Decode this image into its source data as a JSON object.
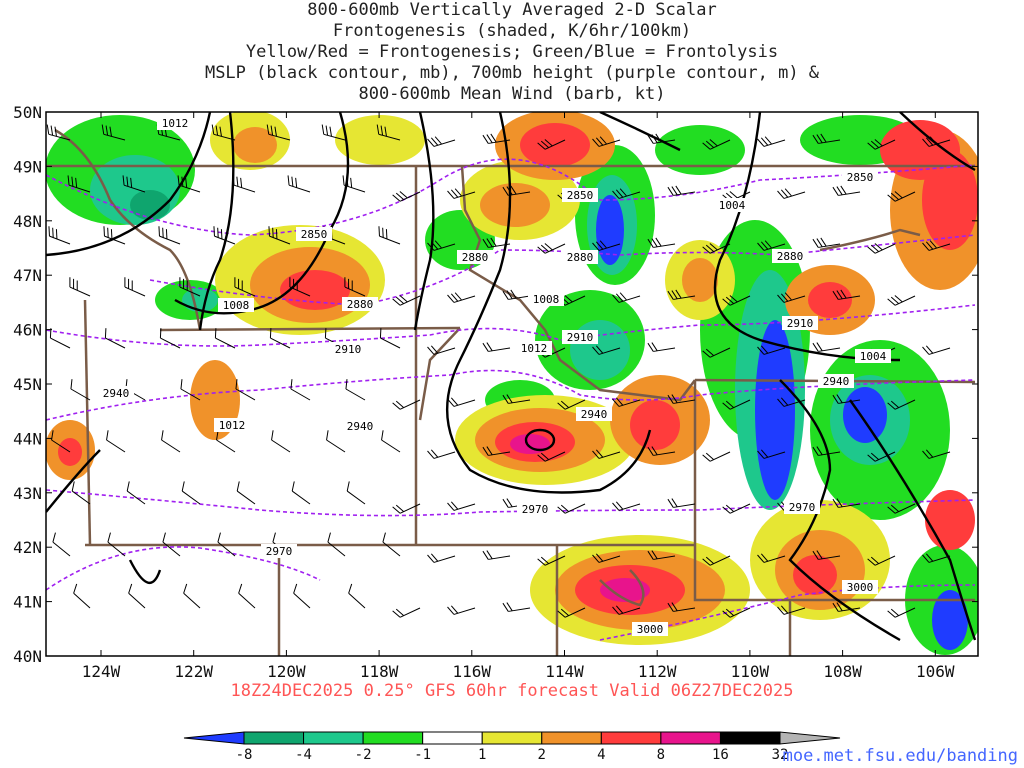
{
  "title_lines": [
    "800-600mb Vertically Averaged 2-D Scalar",
    "Frontogenesis (shaded, K/6hr/100km)",
    "Yellow/Red = Frontogenesis;  Green/Blue = Frontolysis",
    "MSLP (black contour, mb), 700mb height (purple contour, m) &",
    "800-600mb Mean Wind (barb, kt)"
  ],
  "subtitle": "18Z24DEC2025 0.25° GFS 60hr forecast Valid 06Z27DEC2025",
  "footer": "moe.met.fsu.edu/banding",
  "lat_labels": [
    "50N",
    "49N",
    "48N",
    "47N",
    "46N",
    "45N",
    "44N",
    "43N",
    "42N",
    "41N",
    "40N"
  ],
  "lon_labels": [
    "124W",
    "122W",
    "120W",
    "118W",
    "116W",
    "114W",
    "112W",
    "110W",
    "108W",
    "106W"
  ],
  "colorbar": {
    "ticks": [
      "-8",
      "-4",
      "-2",
      "-1",
      "1",
      "2",
      "4",
      "8",
      "16",
      "32"
    ],
    "colors": [
      "#1f3cff",
      "#0fa56e",
      "#1ec88c",
      "#22dd22",
      "#ffffff",
      "#e6e633",
      "#f0922a",
      "#ff3c3c",
      "#e8148c",
      "#000000",
      "#b4b4b4"
    ]
  },
  "contour_colors": {
    "mslp": "#000000",
    "height": "#a020f0",
    "border": "#7a5c48"
  },
  "mslp_labels": [
    "1012",
    "1008",
    "1004",
    "1008",
    "1012",
    "1004",
    "1012"
  ],
  "height_labels": [
    "2850",
    "2850",
    "2850",
    "2880",
    "2880",
    "2880",
    "2880",
    "2910",
    "2910",
    "2910",
    "2940",
    "2940",
    "2940",
    "2940",
    "2970",
    "2970",
    "2970",
    "3000",
    "3000"
  ]
}
